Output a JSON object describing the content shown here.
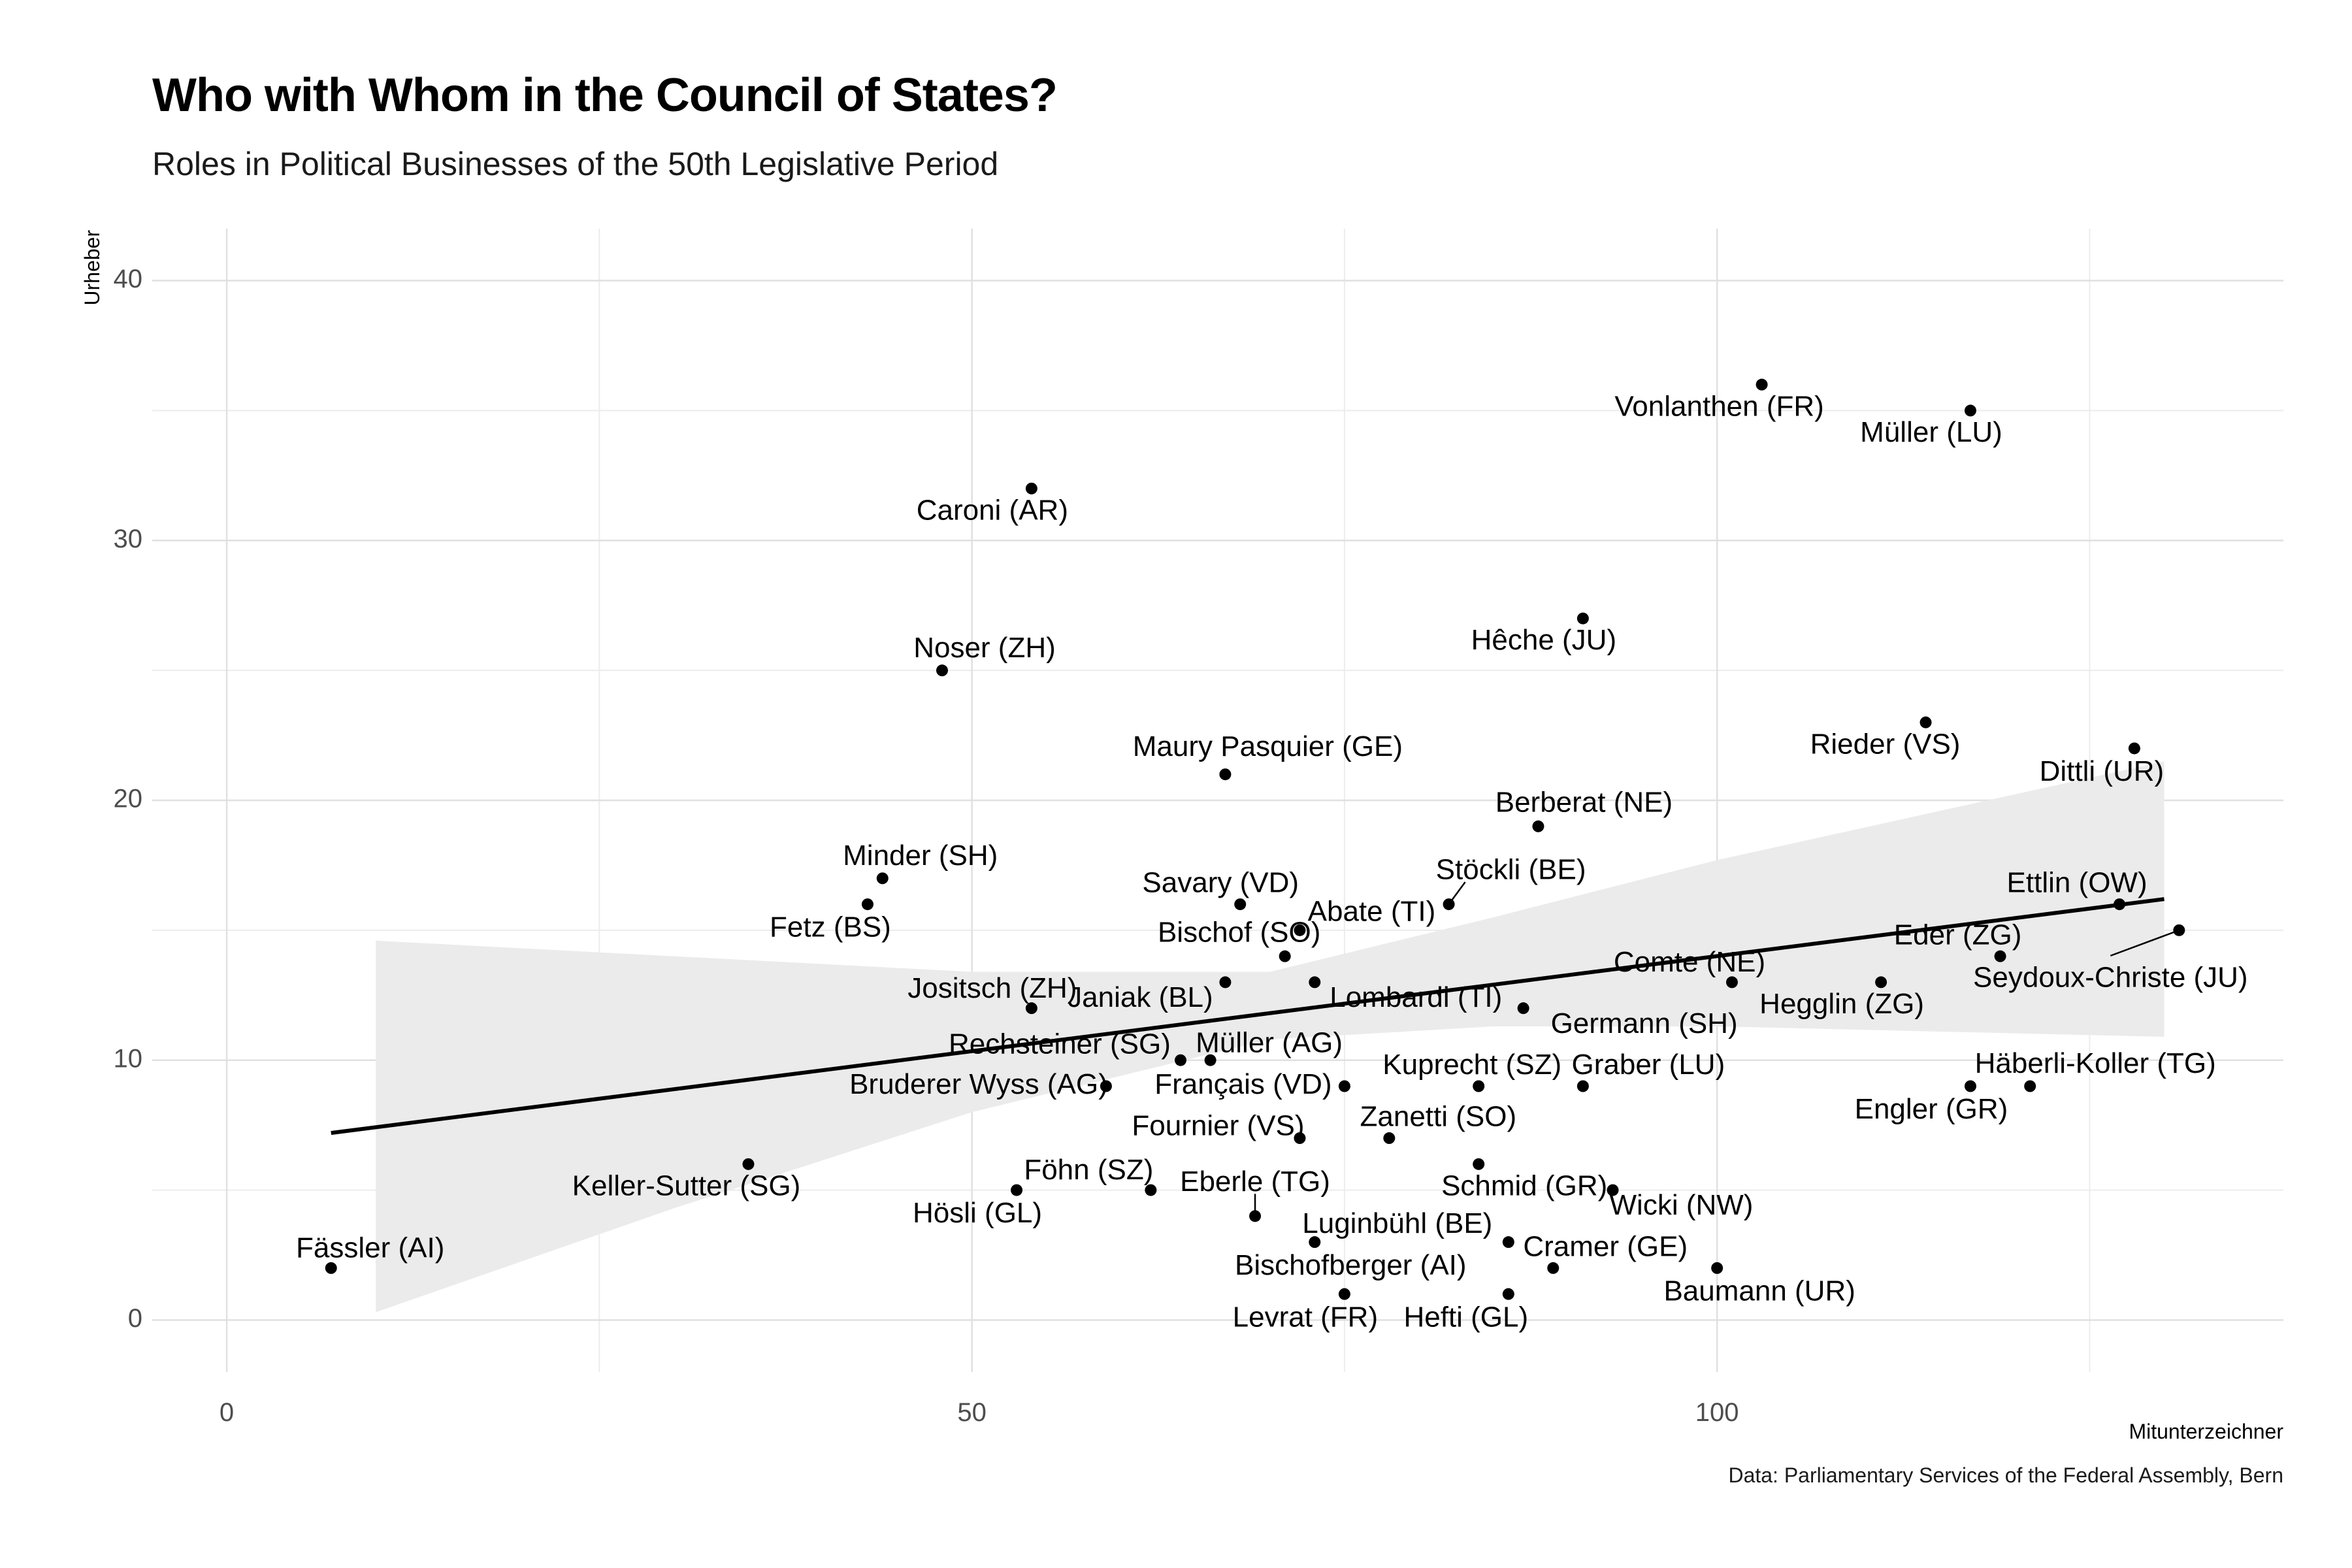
{
  "chart_data": {
    "type": "scatter",
    "title": "Who with Whom in the Council of States?",
    "subtitle": "Roles in Political Businesses of the 50th Legislative Period",
    "caption": "Data: Parliamentary Services of the Federal Assembly, Bern",
    "xlabel": "Mitunterzeichner",
    "ylabel": "Urheber",
    "xlim": [
      -5,
      138
    ],
    "ylim": [
      -2,
      42
    ],
    "xticks": [
      0,
      50,
      100
    ],
    "yticks": [
      0,
      10,
      20,
      30,
      40
    ],
    "grid": true,
    "legend": "none",
    "trend": {
      "type": "linear",
      "x_start": 7,
      "x_end": 130,
      "y_start": 7.2,
      "y_end": 16.2
    },
    "confidence_band": [
      {
        "x": 10,
        "lo": 0.3,
        "hi": 14.6
      },
      {
        "x": 30,
        "lo": 4.3,
        "hi": 14.0
      },
      {
        "x": 50,
        "lo": 8.0,
        "hi": 13.4
      },
      {
        "x": 70,
        "lo": 10.8,
        "hi": 13.4
      },
      {
        "x": 85,
        "lo": 11.3,
        "hi": 15.5
      },
      {
        "x": 100,
        "lo": 11.3,
        "hi": 17.7
      },
      {
        "x": 115,
        "lo": 11.1,
        "hi": 19.6
      },
      {
        "x": 130,
        "lo": 10.9,
        "hi": 21.5
      }
    ],
    "points": [
      {
        "name": "Fässler (AI)",
        "x": 7,
        "y": 2
      },
      {
        "name": "Keller-Sutter (SG)",
        "x": 35,
        "y": 6
      },
      {
        "name": "Fetz (BS)",
        "x": 43,
        "y": 16
      },
      {
        "name": "Minder (SH)",
        "x": 44,
        "y": 17
      },
      {
        "name": "Noser (ZH)",
        "x": 48,
        "y": 25
      },
      {
        "name": "Hösli (GL)",
        "x": 53,
        "y": 5
      },
      {
        "name": "Caroni (AR)",
        "x": 54,
        "y": 32
      },
      {
        "name": "Jositsch (ZH)",
        "x": 54,
        "y": 12
      },
      {
        "name": "Bruderer Wyss (AG)",
        "x": 59,
        "y": 9
      },
      {
        "name": "Föhn (SZ)",
        "x": 62,
        "y": 5
      },
      {
        "name": "Rechsteiner (SG)",
        "x": 64,
        "y": 10
      },
      {
        "name": "Müller (AG)",
        "x": 66,
        "y": 10
      },
      {
        "name": "Maury Pasquier (GE)",
        "x": 67,
        "y": 21
      },
      {
        "name": "Janiak (BL)",
        "x": 67,
        "y": 13
      },
      {
        "name": "Savary (VD)",
        "x": 68,
        "y": 16
      },
      {
        "name": "Eberle (TG)",
        "x": 69,
        "y": 4
      },
      {
        "name": "Bischof (SO)",
        "x": 71,
        "y": 14
      },
      {
        "name": "Abate (TI)",
        "x": 72,
        "y": 15
      },
      {
        "name": "Fournier (VS)",
        "x": 72,
        "y": 7
      },
      {
        "name": "Lombardi (TI)",
        "x": 73,
        "y": 13
      },
      {
        "name": "Bischofberger (AI)",
        "x": 73,
        "y": 3
      },
      {
        "name": "Français (VD)",
        "x": 75,
        "y": 9
      },
      {
        "name": "Levrat (FR)",
        "x": 75,
        "y": 1
      },
      {
        "name": "Zanetti (SO)",
        "x": 78,
        "y": 7
      },
      {
        "name": "Stöckli (BE)",
        "x": 82,
        "y": 16
      },
      {
        "name": "Kuprecht (SZ)",
        "x": 84,
        "y": 9
      },
      {
        "name": "Schmid (GR)",
        "x": 84,
        "y": 6
      },
      {
        "name": "Luginbühl (BE)",
        "x": 86,
        "y": 3
      },
      {
        "name": "Hefti (GL)",
        "x": 86,
        "y": 1
      },
      {
        "name": "Germann (SH)",
        "x": 87,
        "y": 12
      },
      {
        "name": "Berberat (NE)",
        "x": 88,
        "y": 19
      },
      {
        "name": "Cramer (GE)",
        "x": 89,
        "y": 2
      },
      {
        "name": "Hêche (JU)",
        "x": 91,
        "y": 27
      },
      {
        "name": "Graber (LU)",
        "x": 91,
        "y": 9
      },
      {
        "name": "Wicki (NW)",
        "x": 93,
        "y": 5
      },
      {
        "name": "Baumann (UR)",
        "x": 100,
        "y": 2
      },
      {
        "name": "Comte (NE)",
        "x": 101,
        "y": 13
      },
      {
        "name": "Vonlanthen (FR)",
        "x": 103,
        "y": 36
      },
      {
        "name": "Hegglin (ZG)",
        "x": 111,
        "y": 13
      },
      {
        "name": "Rieder (VS)",
        "x": 114,
        "y": 23
      },
      {
        "name": "Müller (LU)",
        "x": 117,
        "y": 35
      },
      {
        "name": "Engler (GR)",
        "x": 117,
        "y": 9
      },
      {
        "name": "Eder (ZG)",
        "x": 119,
        "y": 14
      },
      {
        "name": "Häberli-Koller (TG)",
        "x": 121,
        "y": 9
      },
      {
        "name": "Ettlin (OW)",
        "x": 127,
        "y": 16
      },
      {
        "name": "Dittli (UR)",
        "x": 128,
        "y": 22
      },
      {
        "name": "Seydoux-Christe (JU)",
        "x": 131,
        "y": 15
      }
    ]
  }
}
